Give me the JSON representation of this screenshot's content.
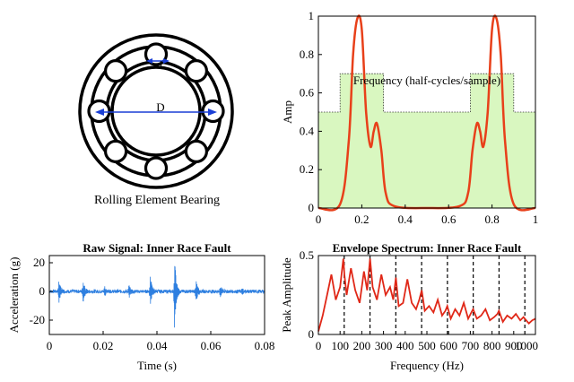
{
  "colors": {
    "signal_blue": "#2E7FE0",
    "curve_red": "#E8401A",
    "fill_green": "#D9F7C0",
    "axis_black": "#000000",
    "bearing_line_blue": "#1A3FD6"
  },
  "diagram": {
    "caption": "Rolling Element Bearing",
    "label_small": "d",
    "label_large": "D"
  },
  "chart_data": [
    {
      "id": "filter-response",
      "type": "area",
      "title": "",
      "xlabel": "Frequency (half-cycles/sample)",
      "ylabel": "Amp",
      "xlim": [
        0,
        1
      ],
      "ylim": [
        0,
        1
      ],
      "xticks": [
        "0",
        "0.2",
        "0.4",
        "0.6",
        "0.8",
        "1"
      ],
      "yticks": [
        "0",
        "0.2",
        "0.4",
        "0.6",
        "0.8",
        "1"
      ],
      "grid": false,
      "legend": "none",
      "series": [
        {
          "kind": "step-fill",
          "x": [
            0,
            0.1,
            0.1,
            0.3,
            0.3,
            0.7,
            0.7,
            0.9,
            0.9,
            1
          ],
          "y": [
            0.5,
            0.5,
            0.7,
            0.7,
            0.5,
            0.5,
            0.7,
            0.7,
            0.5,
            0.5
          ]
        },
        {
          "kind": "line",
          "x": [
            0,
            0.1,
            0.14,
            0.16,
            0.18,
            0.2,
            0.22,
            0.24,
            0.255,
            0.27,
            0.29,
            0.31,
            0.35,
            0.5,
            0.65,
            0.69,
            0.71,
            0.73,
            0.745,
            0.76,
            0.78,
            0.8,
            0.82,
            0.84,
            0.86,
            0.9,
            1
          ],
          "y": [
            0,
            0.02,
            0.35,
            0.8,
            0.99,
            0.93,
            0.5,
            0.32,
            0.4,
            0.44,
            0.3,
            0.08,
            0.01,
            0,
            0.01,
            0.08,
            0.3,
            0.44,
            0.4,
            0.32,
            0.5,
            0.93,
            0.99,
            0.8,
            0.35,
            0.02,
            0
          ]
        }
      ]
    },
    {
      "id": "raw-signal",
      "type": "line",
      "title": "Raw Signal: Inner Race Fault",
      "xlabel": "Time (s)",
      "ylabel": "Acceleration (g)",
      "xlim": [
        0,
        0.08
      ],
      "ylim": [
        -30,
        25
      ],
      "xticks": [
        "0",
        "0.02",
        "0.04",
        "0.06",
        "0.08"
      ],
      "yticks": [
        "-20",
        "0",
        "20"
      ],
      "grid": false,
      "legend": "none",
      "impulses": [
        {
          "t": 0.0035,
          "amp": 10
        },
        {
          "t": 0.0125,
          "amp": 9
        },
        {
          "t": 0.0205,
          "amp": 4
        },
        {
          "t": 0.0295,
          "amp": 5
        },
        {
          "t": 0.0375,
          "amp": 12
        },
        {
          "t": 0.0465,
          "amp": 26
        },
        {
          "t": 0.0545,
          "amp": 9
        },
        {
          "t": 0.0635,
          "amp": 5
        },
        {
          "t": 0.0715,
          "amp": 3
        }
      ],
      "noise_amplitude": 1.2
    },
    {
      "id": "envelope-spectrum",
      "type": "line",
      "title": "Envelope Spectrum: Inner Race Fault",
      "xlabel": "Frequency (Hz)",
      "ylabel": "Peak Amplitude",
      "xlim": [
        0,
        1000
      ],
      "ylim": [
        0,
        0.5
      ],
      "xticks": [
        "0",
        "100",
        "200",
        "300",
        "400",
        "500",
        "600",
        "700",
        "800",
        "900",
        "1000"
      ],
      "yticks": [
        "0",
        "0.5"
      ],
      "grid": false,
      "legend": "none",
      "harmonic_markers": [
        118.9,
        237.8,
        356.7,
        475.6,
        594.5,
        713.4,
        832.3,
        951.2
      ],
      "x": [
        0,
        20,
        40,
        60,
        80,
        100,
        115,
        120,
        130,
        150,
        170,
        190,
        210,
        225,
        238,
        250,
        270,
        290,
        310,
        330,
        345,
        357,
        370,
        390,
        410,
        430,
        450,
        465,
        476,
        490,
        510,
        530,
        550,
        570,
        585,
        594,
        610,
        630,
        650,
        670,
        690,
        705,
        713,
        730,
        750,
        770,
        790,
        810,
        825,
        832,
        850,
        870,
        890,
        910,
        930,
        945,
        951,
        970,
        985,
        1000
      ],
      "values": [
        0.02,
        0.12,
        0.25,
        0.38,
        0.22,
        0.3,
        0.48,
        0.38,
        0.25,
        0.42,
        0.28,
        0.2,
        0.4,
        0.28,
        0.48,
        0.3,
        0.22,
        0.38,
        0.25,
        0.3,
        0.22,
        0.36,
        0.18,
        0.2,
        0.35,
        0.2,
        0.16,
        0.22,
        0.28,
        0.15,
        0.18,
        0.14,
        0.22,
        0.12,
        0.15,
        0.18,
        0.1,
        0.16,
        0.12,
        0.2,
        0.1,
        0.14,
        0.16,
        0.1,
        0.12,
        0.16,
        0.09,
        0.11,
        0.13,
        0.15,
        0.08,
        0.12,
        0.1,
        0.13,
        0.09,
        0.11,
        0.1,
        0.07,
        0.09,
        0.1
      ]
    }
  ]
}
